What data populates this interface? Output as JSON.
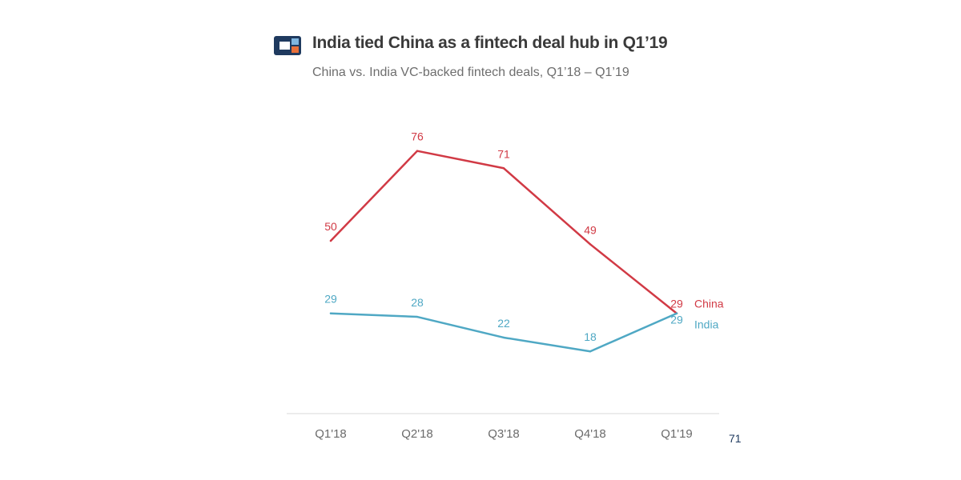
{
  "header": {
    "title": "India tied China as a fintech deal hub in Q1’19",
    "subtitle": "China vs. India VC-backed fintech deals, Q1’18 – Q1’19"
  },
  "colors": {
    "china": "#d13a45",
    "india": "#4fa8c4",
    "logo_dark": "#1f3a5f",
    "logo_accent": "#e8703a",
    "logo_light": "#7fb6e0",
    "axis": "#d9d9d9",
    "tick": "#6b6b6b"
  },
  "chart_data": {
    "type": "line",
    "categories": [
      "Q1'18",
      "Q2'18",
      "Q3'18",
      "Q4'18",
      "Q1'19"
    ],
    "series": [
      {
        "name": "China",
        "values": [
          50,
          76,
          71,
          49,
          29
        ]
      },
      {
        "name": "India",
        "values": [
          29,
          28,
          22,
          18,
          29
        ]
      }
    ],
    "title": "India tied China as a fintech deal hub in Q1’19",
    "subtitle": "China vs. India VC-backed fintech deals, Q1’18 – Q1’19",
    "xlabel": "",
    "ylabel": "",
    "ylim": [
      0,
      80
    ],
    "grid": false,
    "legend": "end-of-line labels"
  },
  "footer": {
    "page_number": "71"
  }
}
